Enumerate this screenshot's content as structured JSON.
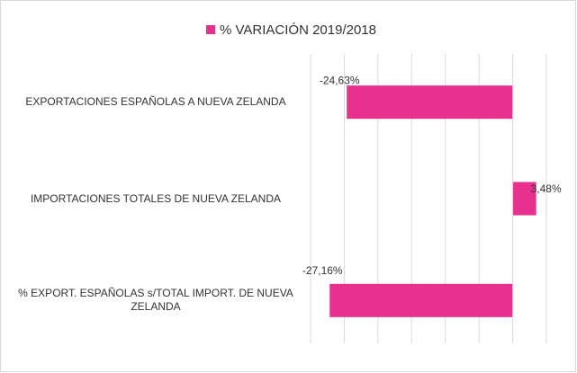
{
  "chart_data": {
    "type": "hbar",
    "categories": [
      "EXPORTACIONES ESPAÑOLAS A NUEVA ZELANDA",
      "IMPORTACIONES TOTALES DE NUEVA ZELANDA",
      "% EXPORT. ESPAÑOLAS s/TOTAL IMPORT. DE NUEVA ZELANDA"
    ],
    "series": [
      {
        "name": "% VARIACIÓN 2019/2018",
        "color": "#e8308f",
        "values": [
          -24.63,
          3.48,
          -27.16
        ],
        "value_labels": [
          "-24,63%",
          "3,48%",
          "-27,16%"
        ]
      }
    ],
    "xlim": [
      -30,
      5
    ],
    "xticks": [
      -30,
      -25,
      -20,
      -15,
      -10,
      -5,
      0,
      5
    ],
    "grid": true,
    "legend": "top"
  }
}
